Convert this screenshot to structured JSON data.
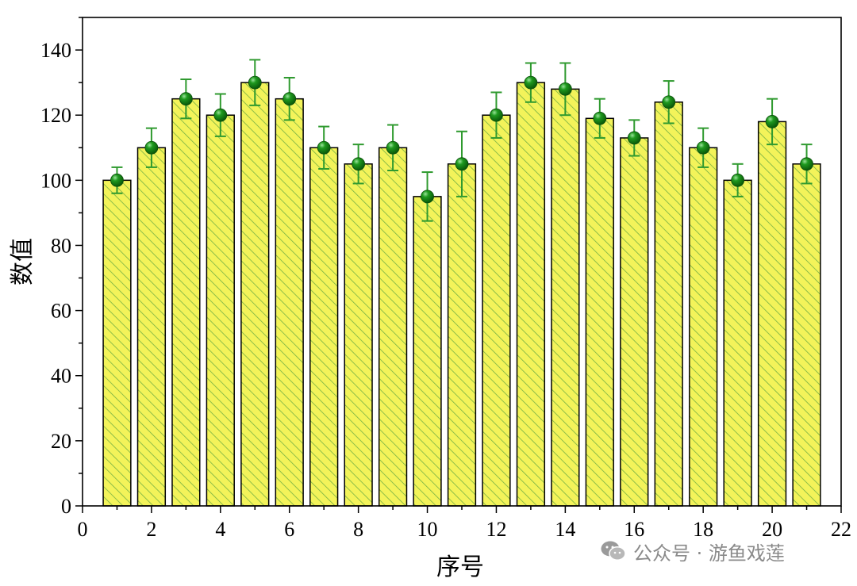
{
  "chart_data": {
    "type": "bar",
    "title": "",
    "xlabel": "序号",
    "ylabel": "数值",
    "x": [
      1,
      2,
      3,
      4,
      5,
      6,
      7,
      8,
      9,
      10,
      11,
      12,
      13,
      14,
      15,
      16,
      17,
      18,
      19,
      20,
      21
    ],
    "values": [
      100,
      110,
      125,
      120,
      130,
      125,
      110,
      105,
      110,
      95,
      105,
      120,
      130,
      128,
      119,
      113,
      124,
      110,
      100,
      118,
      105
    ],
    "error": [
      4,
      6,
      6,
      6.5,
      7,
      6.5,
      6.5,
      6,
      7,
      7.5,
      10,
      7,
      6,
      8,
      6,
      5.5,
      6.5,
      6,
      5,
      7,
      6
    ],
    "xlim": [
      0,
      22
    ],
    "ylim": [
      0,
      150
    ],
    "xticks": [
      0,
      2,
      4,
      6,
      8,
      10,
      12,
      14,
      16,
      18,
      20,
      22
    ],
    "yticks": [
      0,
      20,
      40,
      60,
      80,
      100,
      120,
      140
    ],
    "grid": false,
    "colors": {
      "gradient_top": "#f3f35a",
      "gradient_mid": "#5ec7a1",
      "gradient_bottom": "#6a4f9e",
      "hatch": "#4a9a3a",
      "marker": "#0e7a0e",
      "errorbar": "#2f9a2f"
    }
  },
  "watermark": {
    "text": "公众号 · 游鱼戏莲",
    "icon": "wechat-icon"
  }
}
